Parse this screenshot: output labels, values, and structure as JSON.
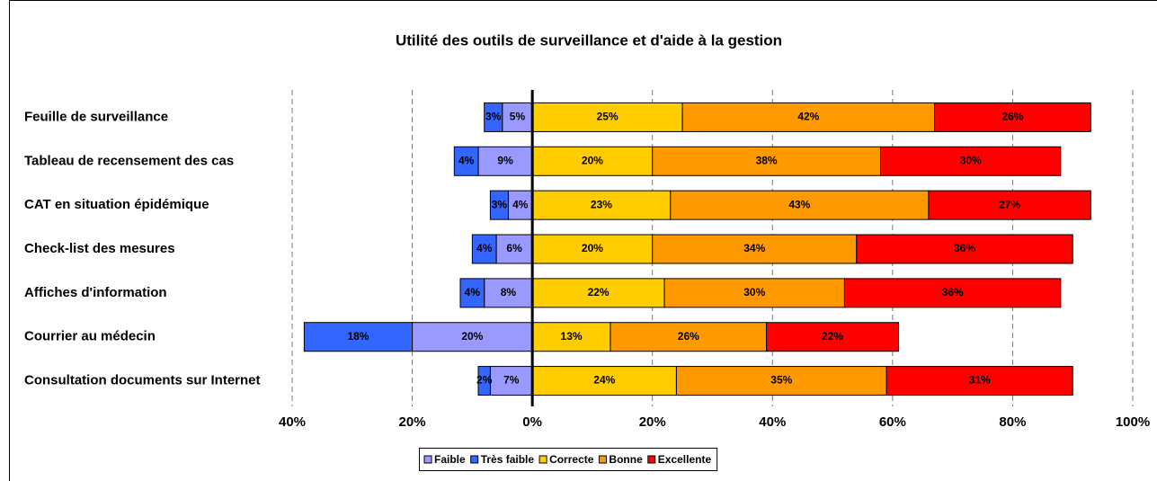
{
  "chart_data": {
    "type": "diverging-bar",
    "title": "Utilité des outils de surveillance et d'aide à la gestion",
    "categories": [
      "Feuille de surveillance",
      "Tableau de recensement des cas",
      "CAT en situation épidémique",
      "Check-list des mesures",
      "Affiches d'information",
      "Courrier au médecin",
      "Consultation documents sur Internet"
    ],
    "series": [
      {
        "name": "Faible",
        "color": "#9999ff",
        "side": "left",
        "values": [
          5,
          9,
          4,
          6,
          8,
          20,
          7
        ],
        "value_labels": [
          "5%",
          "9%",
          "4%",
          "6%",
          "8%",
          "20%",
          "7%"
        ]
      },
      {
        "name": "Très faible",
        "color": "#3366ff",
        "side": "left",
        "values": [
          3,
          4,
          3,
          4,
          4,
          18,
          2
        ],
        "value_labels": [
          "3%",
          "4%",
          "3%",
          "4%",
          "4%",
          "18%",
          "2%"
        ]
      },
      {
        "name": "Correcte",
        "color": "#ffcc00",
        "side": "right",
        "values": [
          25,
          20,
          23,
          20,
          22,
          13,
          24
        ],
        "value_labels": [
          "25%",
          "20%",
          "23%",
          "20%",
          "22%",
          "13%",
          "24%"
        ]
      },
      {
        "name": "Bonne",
        "color": "#ff9900",
        "side": "right",
        "values": [
          42,
          38,
          43,
          34,
          30,
          26,
          35
        ],
        "value_labels": [
          "42%",
          "38%",
          "43%",
          "34%",
          "30%",
          "26%",
          "35%"
        ]
      },
      {
        "name": "Excellente",
        "color": "#ff0000",
        "side": "right",
        "values": [
          26,
          30,
          27,
          36,
          36,
          22,
          31
        ],
        "value_labels": [
          "26%",
          "30%",
          "27%",
          "36%",
          "36%",
          "22%",
          "31%"
        ]
      }
    ],
    "xlim": [
      -40,
      100
    ],
    "xticks": [
      {
        "value": -40,
        "label": "40%"
      },
      {
        "value": -20,
        "label": "20%"
      },
      {
        "value": 0,
        "label": "0%"
      },
      {
        "value": 20,
        "label": "20%"
      },
      {
        "value": 40,
        "label": "40%"
      },
      {
        "value": 60,
        "label": "60%"
      },
      {
        "value": 80,
        "label": "80%"
      },
      {
        "value": 100,
        "label": "100%"
      }
    ],
    "grid": true,
    "legend": "bottom"
  }
}
